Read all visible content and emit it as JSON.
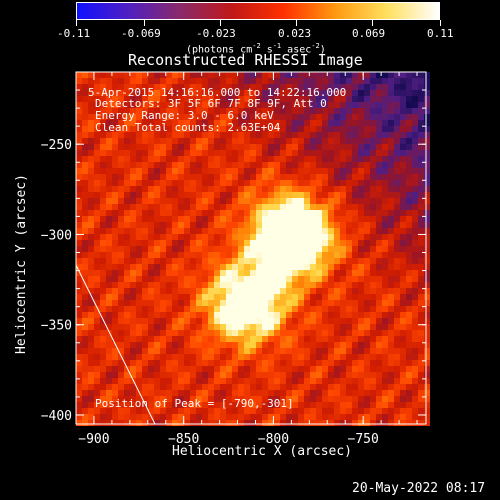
{
  "colorbar": {
    "tick_labels": [
      "-0.11",
      "-0.069",
      "-0.023",
      "0.023",
      "0.069",
      "0.11"
    ],
    "tick_values": [
      -0.11,
      -0.069,
      -0.023,
      0.023,
      0.069,
      0.11
    ],
    "range": [
      -0.11,
      0.11
    ],
    "units_line1": "(photons cm",
    "units_sup1": "-2",
    "units_mid1": " s",
    "units_sup2": "-1",
    "units_mid2": " asec",
    "units_sup3": "-2",
    "units_end": ")",
    "colors": [
      "#1010ff",
      "#5020c0",
      "#8a2a6a",
      "#c01818",
      "#ff3000",
      "#ff9a10",
      "#ffe060",
      "#ffffff"
    ]
  },
  "chart_data": {
    "type": "heatmap",
    "title": "Reconstructed RHESSI Image",
    "xlabel": "Heliocentric X (arcsec)",
    "ylabel": "Heliocentric Y (arcsec)",
    "xlim": [
      -910,
      -715
    ],
    "ylim": [
      -405,
      -210
    ],
    "x_ticks": [
      -900,
      -850,
      -800,
      -750
    ],
    "x_tick_labels": [
      "−900",
      "−850",
      "−800",
      "−750"
    ],
    "y_ticks": [
      -250,
      -300,
      -350,
      -400
    ],
    "y_tick_labels": [
      "−250",
      "−300",
      "−350",
      "−400"
    ],
    "sources": [
      {
        "x": -790,
        "y": -301,
        "amp": 0.11
      },
      {
        "x": -815,
        "y": -338,
        "amp": 0.085
      }
    ],
    "peak_position": [
      -790,
      -301
    ],
    "limb_line": [
      [
        -910,
        -317
      ],
      [
        -866,
        -405
      ]
    ]
  },
  "info": {
    "time_range": "5-Apr-2015 14:16:16.000 to 14:22:16.000",
    "detectors": "Detectors: 3F 5F 6F 7F 8F 9F, Att 0",
    "energy": "Energy Range: 3.0 - 6.0 keV",
    "clean": "Clean    Total counts: 2.63E+04",
    "peak": "Position of Peak = [-790,-301]"
  },
  "footer": {
    "date": "20-May-2022 08:17"
  }
}
